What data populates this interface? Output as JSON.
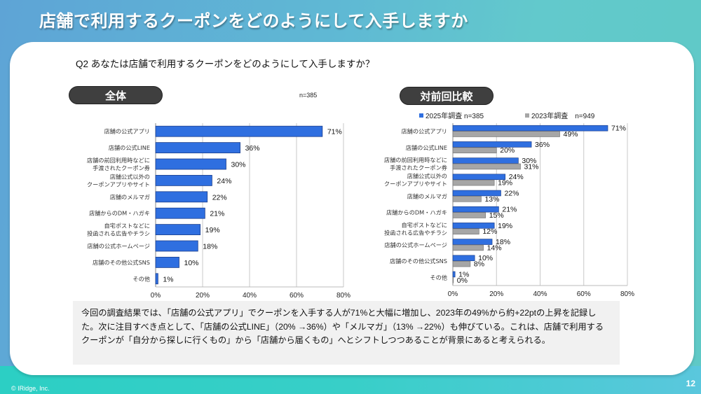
{
  "slide": {
    "title": "店舗で利用するクーポンをどのようにして入手しますか",
    "question": "Q2 あなたは店舗で利用するクーポンをどのようにして入手しますか？",
    "copyright": "© IRidge, Inc.",
    "page_number": "12"
  },
  "left_panel": {
    "pill_label": "全体",
    "n_label": "n=385"
  },
  "right_panel": {
    "pill_label": "対前回比較",
    "legend": [
      {
        "label": "2025年調査 n=385",
        "color": "#2f6fe0"
      },
      {
        "label": "2023年調査　n=949",
        "color": "#a6a6a6"
      }
    ]
  },
  "summary": {
    "text": "今回の調査結果では、「店舗の公式アプリ」でクーポンを入手する人が71%と大幅に増加し、2023年の49%から約+22ptの上昇を記録した。次に注目すべき点として、「店舗の公式LINE」（20% →36%）や「メルマガ」（13% →22%）も伸びている。これは、店舗で利用するクーポンが「自分から探しに行くもの」から「店舗から届くもの」へとシフトしつつあることが背景にあると考えられる。"
  },
  "colors": {
    "bar_2025": "#2f6fe0",
    "bar_2025_edge": "#1c3f8c",
    "bar_2023": "#a6a6a6",
    "bar_2023_edge": "#7a7a7a",
    "grid": "#c8c8c8"
  },
  "chart_data": [
    {
      "type": "bar",
      "orientation": "horizontal",
      "title": "全体",
      "categories": [
        [
          "店舗の公式アプリ"
        ],
        [
          "店舗の公式LINE"
        ],
        [
          "店舗の前回利用時などに",
          "手渡されたクーポン券"
        ],
        [
          "店舗公式以外の",
          "クーポンアプリやサイト"
        ],
        [
          "店舗のメルマガ"
        ],
        [
          "店舗からのDM・ハガキ"
        ],
        [
          "自宅ポストなどに",
          "投函される広告やチラシ"
        ],
        [
          "店舗の公式ホームページ"
        ],
        [
          "店舗のその他公式SNS"
        ],
        [
          "その他"
        ]
      ],
      "series": [
        {
          "name": "全体 n=385",
          "values": [
            71,
            36,
            30,
            24,
            22,
            21,
            19,
            18,
            10,
            1
          ]
        }
      ],
      "xlim": [
        0,
        80
      ],
      "xticks": [
        "0%",
        "20%",
        "40%",
        "60%",
        "80%"
      ],
      "xtick_values": [
        0,
        20,
        40,
        60,
        80
      ],
      "value_suffix": "%",
      "grid": true,
      "legend": "none"
    },
    {
      "type": "bar",
      "orientation": "horizontal",
      "title": "対前回比較",
      "categories": [
        [
          "店舗の公式アプリ"
        ],
        [
          "店舗の公式LINE"
        ],
        [
          "店舗の前回利用時などに",
          "手渡されたクーポン券"
        ],
        [
          "店舗公式以外の",
          "クーポンアプリやサイト"
        ],
        [
          "店舗のメルマガ"
        ],
        [
          "店舗からのDM・ハガキ"
        ],
        [
          "自宅ポストなどに",
          "投函される広告やチラシ"
        ],
        [
          "店舗の公式ホームページ"
        ],
        [
          "店舗のその他公式SNS"
        ],
        [
          "その他"
        ]
      ],
      "series": [
        {
          "name": "2025年調査 n=385",
          "values": [
            71,
            36,
            30,
            24,
            22,
            21,
            19,
            18,
            10,
            1
          ]
        },
        {
          "name": "2023年調査 n=949",
          "values": [
            49,
            20,
            31,
            19,
            13,
            15,
            12,
            14,
            8,
            0
          ]
        }
      ],
      "xlim": [
        0,
        80
      ],
      "xticks": [
        "0%",
        "20%",
        "40%",
        "60%",
        "80%"
      ],
      "xtick_values": [
        0,
        20,
        40,
        60,
        80
      ],
      "value_suffix": "%",
      "grid": true,
      "legend": "top"
    }
  ]
}
